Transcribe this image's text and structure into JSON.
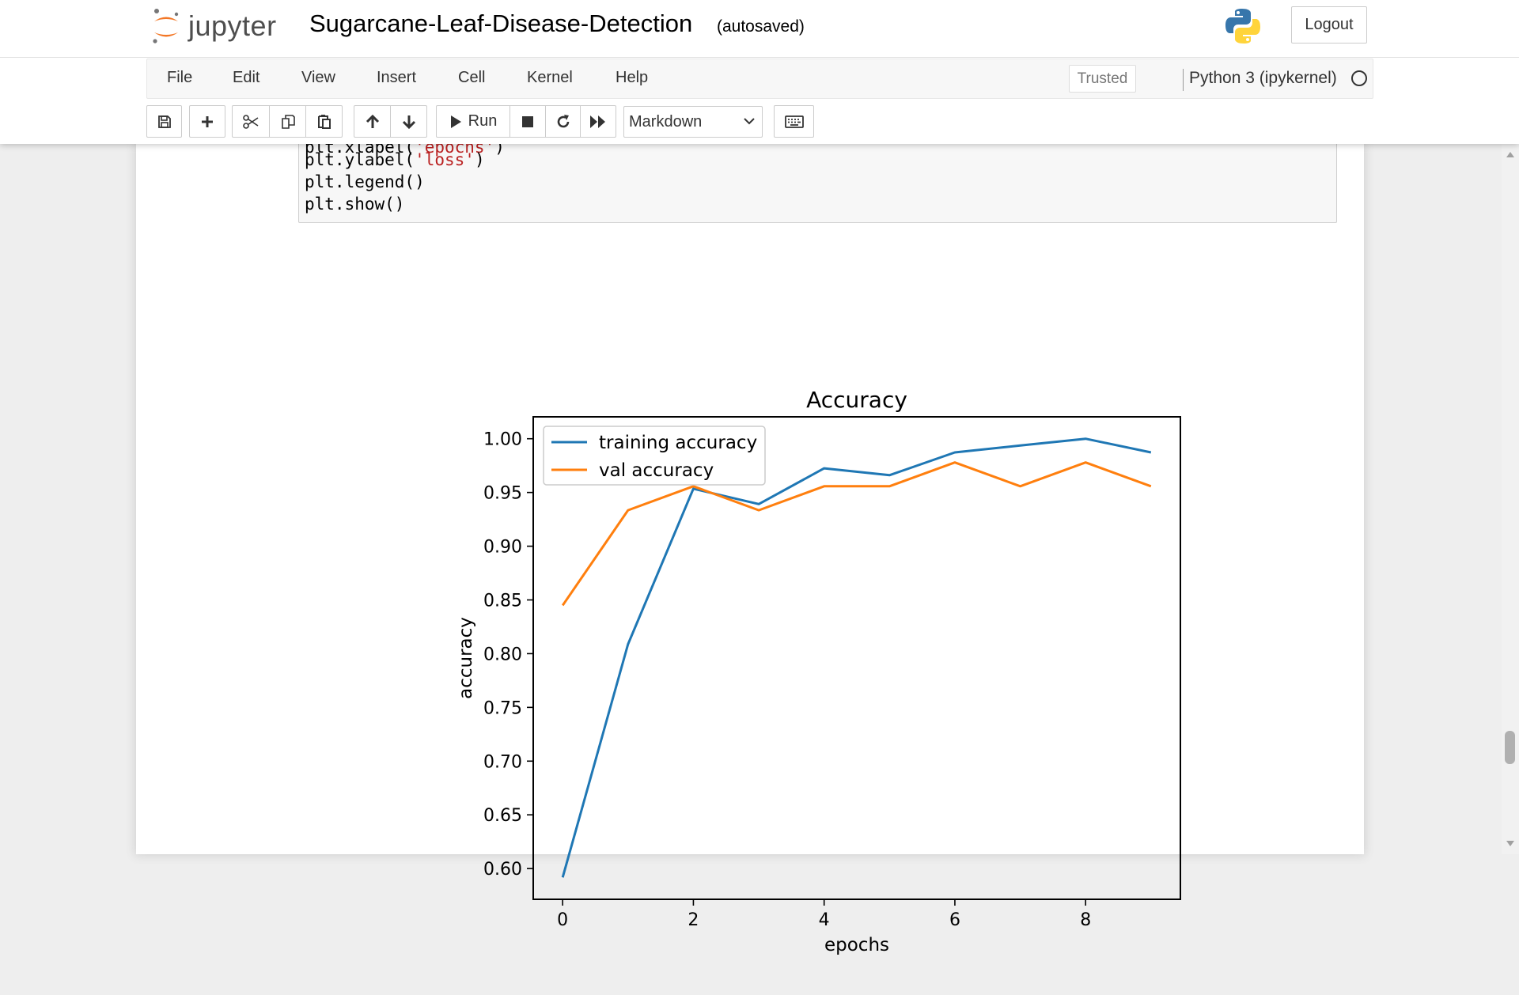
{
  "header": {
    "logo_text": "jupyter",
    "notebook_title": "Sugarcane-Leaf-Disease-Detection",
    "autosave_status": "(autosaved)",
    "logout_label": "Logout"
  },
  "menubar": {
    "items": [
      "File",
      "Edit",
      "View",
      "Insert",
      "Cell",
      "Kernel",
      "Help"
    ],
    "trusted_label": "Trusted",
    "kernel_name": "Python 3 (ipykernel)"
  },
  "toolbar": {
    "run_label": "Run",
    "cell_type": "Markdown",
    "icons": [
      "save-icon",
      "plus-icon",
      "scissors-icon",
      "copy-icon",
      "paste-icon",
      "arrow-up-icon",
      "arrow-down-icon",
      "play-icon",
      "stop-icon",
      "restart-icon",
      "fast-forward-icon",
      "keyboard-icon"
    ]
  },
  "code": {
    "line1_prefix": "plt.ylabel(",
    "line1_string": "'loss'",
    "line1_suffix": ")",
    "line2": "plt.legend()",
    "line3": "plt.show()"
  },
  "colors": {
    "training": "#1f77b4",
    "val": "#ff7f0e",
    "jupyter_orange": "#f37726"
  },
  "chart_data": {
    "type": "line",
    "title": "Accuracy",
    "xlabel": "epochs",
    "ylabel": "accuracy",
    "x": [
      0,
      1,
      2,
      3,
      4,
      5,
      6,
      7,
      8,
      9
    ],
    "xticks": [
      0,
      2,
      4,
      6,
      8
    ],
    "yticks": [
      0.6,
      0.65,
      0.7,
      0.75,
      0.8,
      0.85,
      0.9,
      0.95,
      1.0
    ],
    "xlim": [
      -0.45,
      9.45
    ],
    "ylim": [
      0.5714,
      1.0204
    ],
    "legend_position": "upper-left",
    "grid": false,
    "series": [
      {
        "name": "training accuracy",
        "color": "#1f77b4",
        "values": [
          0.5918,
          0.8088,
          0.9535,
          0.9392,
          0.9725,
          0.9661,
          0.9873,
          0.9937,
          1.0,
          0.9873
        ]
      },
      {
        "name": "val accuracy",
        "color": "#ff7f0e",
        "values": [
          0.8449,
          0.9335,
          0.9558,
          0.9335,
          0.9558,
          0.9558,
          0.9779,
          0.9558,
          0.9779,
          0.9558
        ]
      }
    ]
  }
}
